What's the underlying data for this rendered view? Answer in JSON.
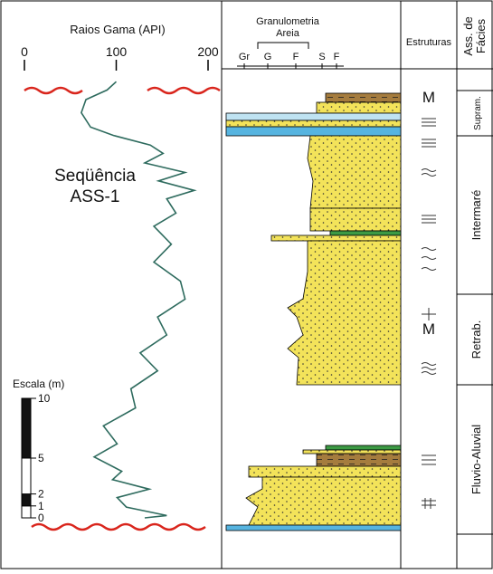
{
  "header": {
    "gamma_title": "Raios Gama (API)",
    "granulometria": "Granulometria",
    "areia": "Areia",
    "grain_sizes": [
      "Gr",
      "G",
      "F",
      "S",
      "F"
    ],
    "estruturas": "Estruturas",
    "facies_title": [
      "Ass. de",
      "Fácies"
    ]
  },
  "annotation": [
    "Seqüência",
    "ASS-1"
  ],
  "structures": [
    "M",
    "M"
  ],
  "facies": [
    "Supram.",
    "Intermaré",
    "Retrab.",
    "Fluvio-Aluvial"
  ],
  "chart_data": {
    "type": "line",
    "color": "#2e6b5e",
    "xlim": [
      0,
      200
    ],
    "xticks": [
      0,
      100,
      200
    ],
    "scale_label": "Escala (m)",
    "yticks": [
      0,
      1,
      2,
      5,
      10
    ],
    "depth_m": [
      36.5,
      35.8,
      35.0,
      33.9,
      32.7,
      32.0,
      31.2,
      30.5,
      29.7,
      28.9,
      28.2,
      27.4,
      26.7,
      25.5,
      24.4,
      22.9,
      21.4,
      19.8,
      18.3,
      16.8,
      15.3,
      13.8,
      12.3,
      10.8,
      9.2,
      7.7,
      6.2,
      5.1,
      3.9,
      3.2,
      2.4,
      1.7,
      0.9,
      0.2,
      0
    ],
    "api": [
      100,
      90,
      67,
      62,
      72,
      97,
      137,
      151,
      131,
      175,
      146,
      185,
      155,
      165,
      141,
      160,
      141,
      170,
      175,
      145,
      155,
      126,
      145,
      116,
      121,
      86,
      101,
      76,
      106,
      96,
      136,
      101,
      111,
      155,
      131
    ]
  }
}
